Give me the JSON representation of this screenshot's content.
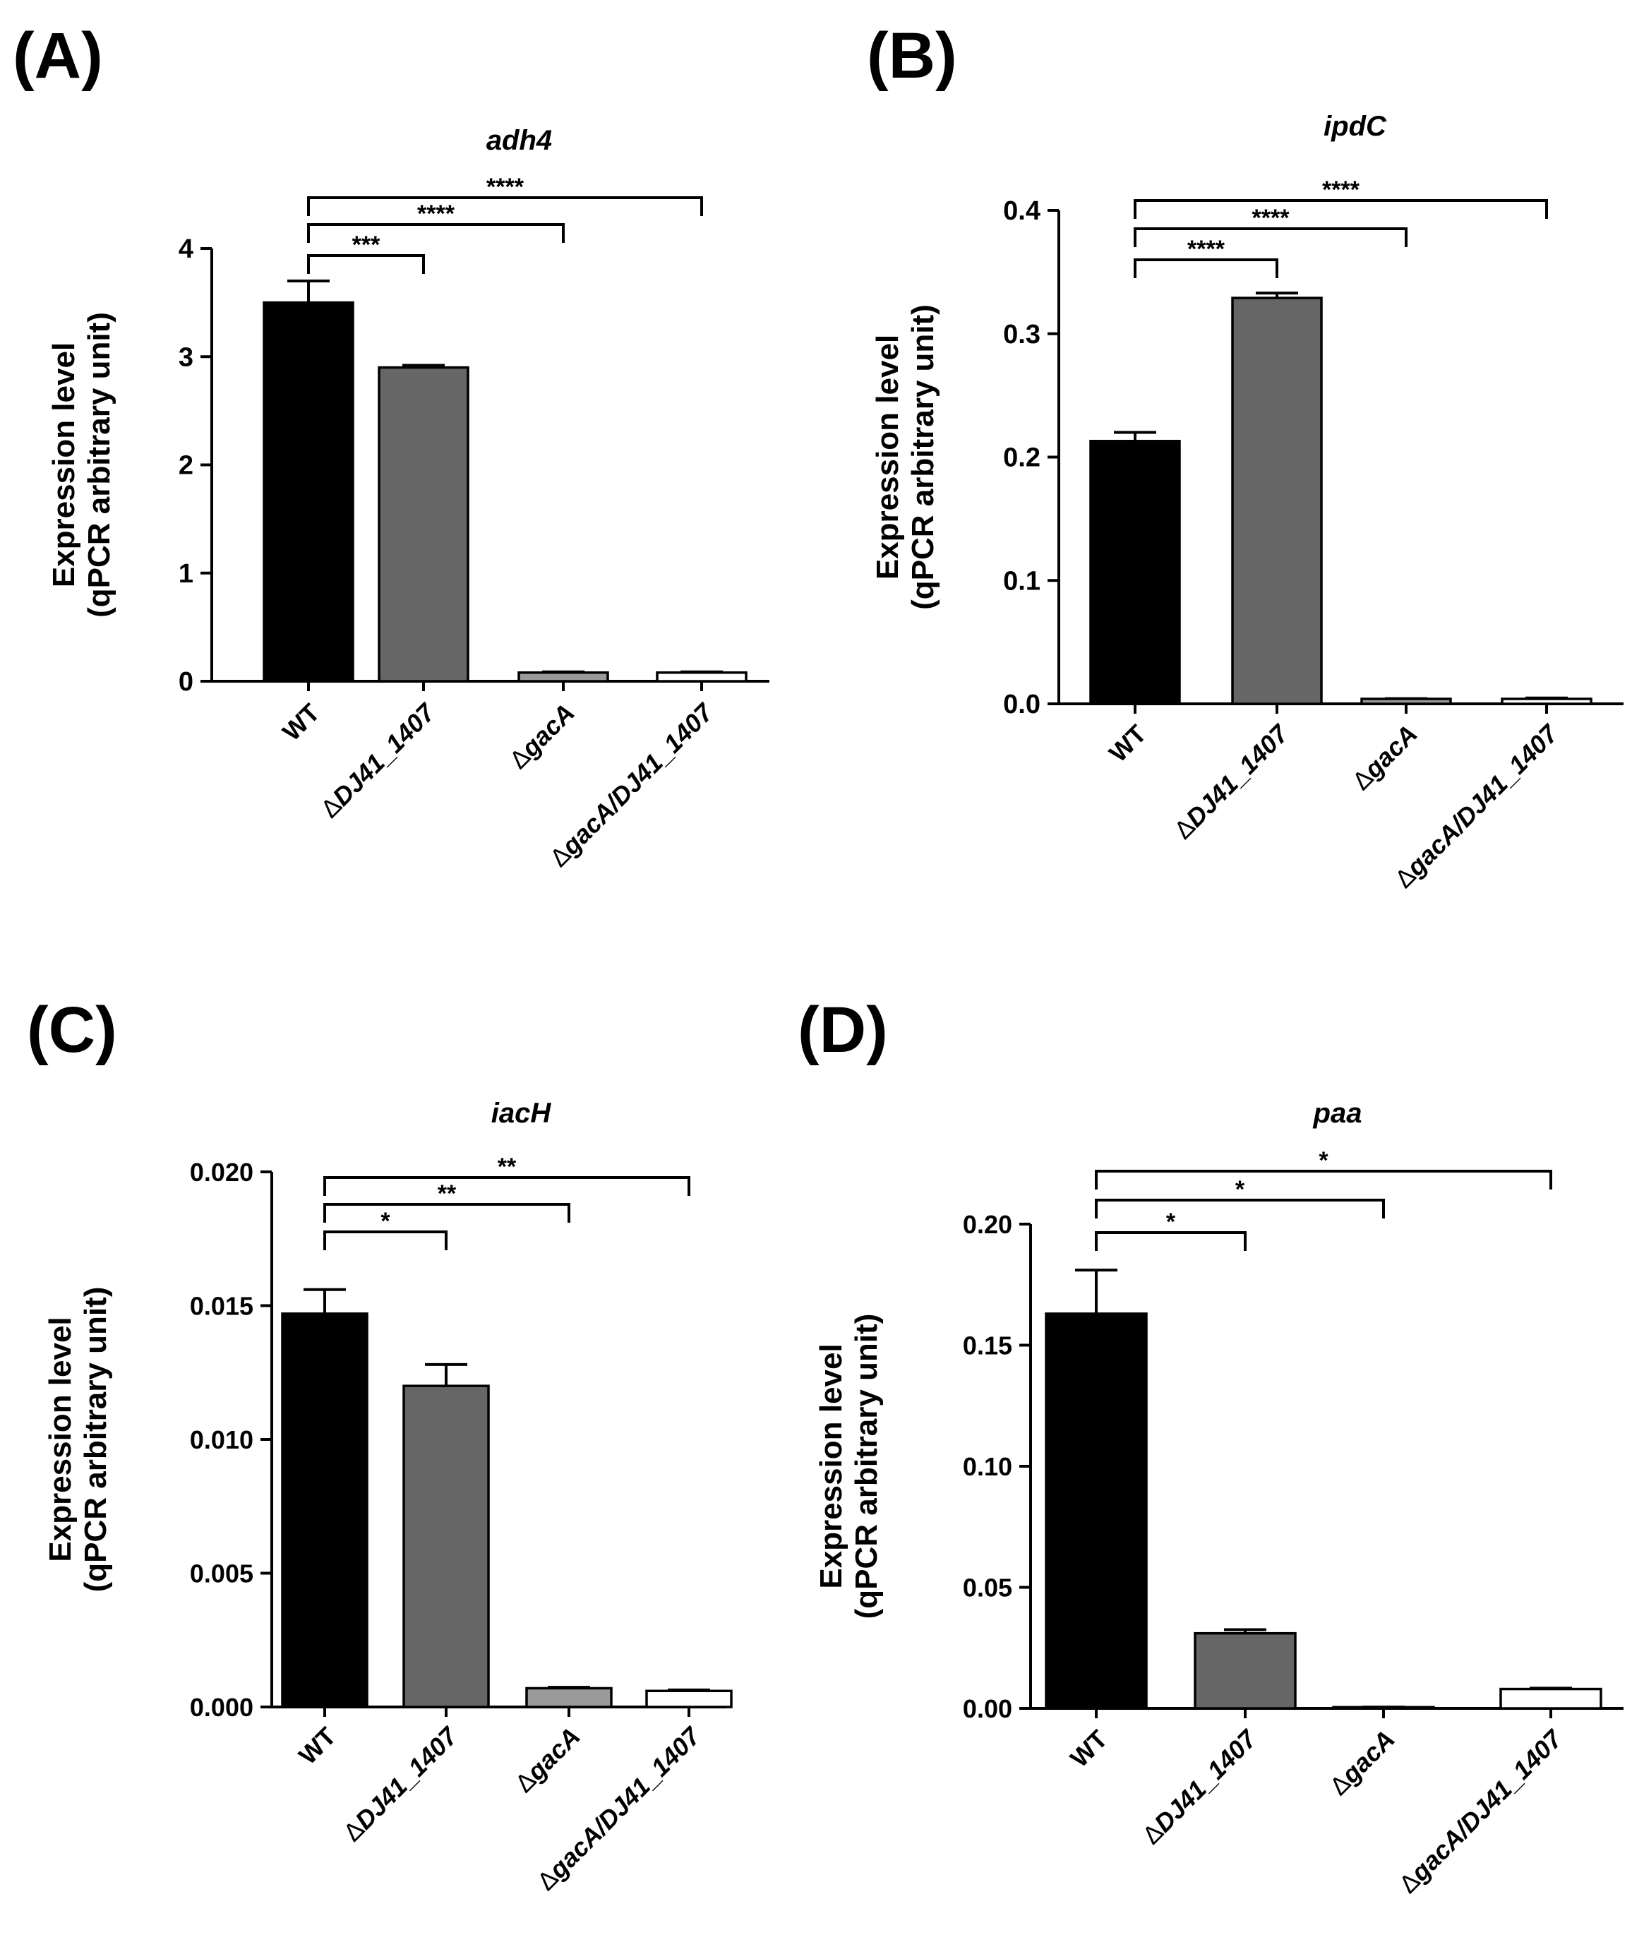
{
  "ylabel_line1": "Expression level",
  "ylabel_line2": "(qPCR arbitrary unit)",
  "categories": [
    "WT",
    "ΔDJ41_1407",
    "ΔgacA",
    "ΔgacA/DJ41_1407"
  ],
  "bar_fills": [
    "#000000",
    "#666666",
    "#9a9a9a",
    "#ffffff"
  ],
  "chart_data": [
    {
      "panel": "(A)",
      "type": "bar",
      "title": "adh4",
      "xlabel": "",
      "ylabel": "Expression level (qPCR arbitrary unit)",
      "categories": [
        "WT",
        "ΔDJ41_1407",
        "ΔgacA",
        "ΔgacA/DJ41_1407"
      ],
      "values": [
        3.5,
        2.9,
        0.08,
        0.08
      ],
      "errors": [
        0.2,
        0.02,
        0.01,
        0.01
      ],
      "ylim": [
        0,
        4
      ],
      "yticks": [
        "0",
        "1",
        "2",
        "3",
        "4"
      ],
      "significance": [
        {
          "from": "WT",
          "to": "ΔDJ41_1407",
          "label": "***"
        },
        {
          "from": "WT",
          "to": "ΔgacA",
          "label": "****"
        },
        {
          "from": "WT",
          "to": "ΔgacA/DJ41_1407",
          "label": "****"
        }
      ]
    },
    {
      "panel": "(B)",
      "type": "bar",
      "title": "ipdC",
      "xlabel": "",
      "ylabel": "Expression level (qPCR arbitrary unit)",
      "categories": [
        "WT",
        "ΔDJ41_1407",
        "ΔgacA",
        "ΔgacA/DJ41_1407"
      ],
      "values": [
        0.213,
        0.329,
        0.004,
        0.004
      ],
      "errors": [
        0.007,
        0.004,
        0.0005,
        0.001
      ],
      "ylim": [
        0,
        0.4
      ],
      "yticks": [
        "0.0",
        "0.1",
        "0.2",
        "0.3",
        "0.4"
      ],
      "significance": [
        {
          "from": "WT",
          "to": "ΔDJ41_1407",
          "label": "****"
        },
        {
          "from": "WT",
          "to": "ΔgacA",
          "label": "****"
        },
        {
          "from": "WT",
          "to": "ΔgacA/DJ41_1407",
          "label": "****"
        }
      ]
    },
    {
      "panel": "(C)",
      "type": "bar",
      "title": "iacH",
      "xlabel": "",
      "ylabel": "Expression level (qPCR arbitrary unit)",
      "categories": [
        "WT",
        "ΔDJ41_1407",
        "ΔgacA",
        "ΔgacA/DJ41_1407"
      ],
      "values": [
        0.0147,
        0.012,
        0.0007,
        0.0006
      ],
      "errors": [
        0.0009,
        0.0008,
        5e-05,
        5e-05
      ],
      "ylim": [
        0,
        0.02
      ],
      "yticks": [
        "0.000",
        "0.005",
        "0.010",
        "0.015",
        "0.020"
      ],
      "significance": [
        {
          "from": "WT",
          "to": "ΔDJ41_1407",
          "label": "*"
        },
        {
          "from": "WT",
          "to": "ΔgacA",
          "label": "**"
        },
        {
          "from": "WT",
          "to": "ΔgacA/DJ41_1407",
          "label": "**"
        }
      ]
    },
    {
      "panel": "(D)",
      "type": "bar",
      "title": "paa",
      "xlabel": "",
      "ylabel": "Expression level (qPCR arbitrary unit)",
      "categories": [
        "WT",
        "ΔDJ41_1407",
        "ΔgacA",
        "ΔgacA/DJ41_1407"
      ],
      "values": [
        0.163,
        0.031,
        0.0005,
        0.008
      ],
      "errors": [
        0.018,
        0.0015,
        0.0002,
        0.0005
      ],
      "ylim": [
        0,
        0.2
      ],
      "yticks": [
        "0.00",
        "0.05",
        "0.10",
        "0.15",
        "0.20"
      ],
      "significance": [
        {
          "from": "WT",
          "to": "ΔDJ41_1407",
          "label": "*"
        },
        {
          "from": "WT",
          "to": "ΔgacA",
          "label": "*"
        },
        {
          "from": "WT",
          "to": "ΔgacA/DJ41_1407",
          "label": "*"
        }
      ]
    }
  ]
}
